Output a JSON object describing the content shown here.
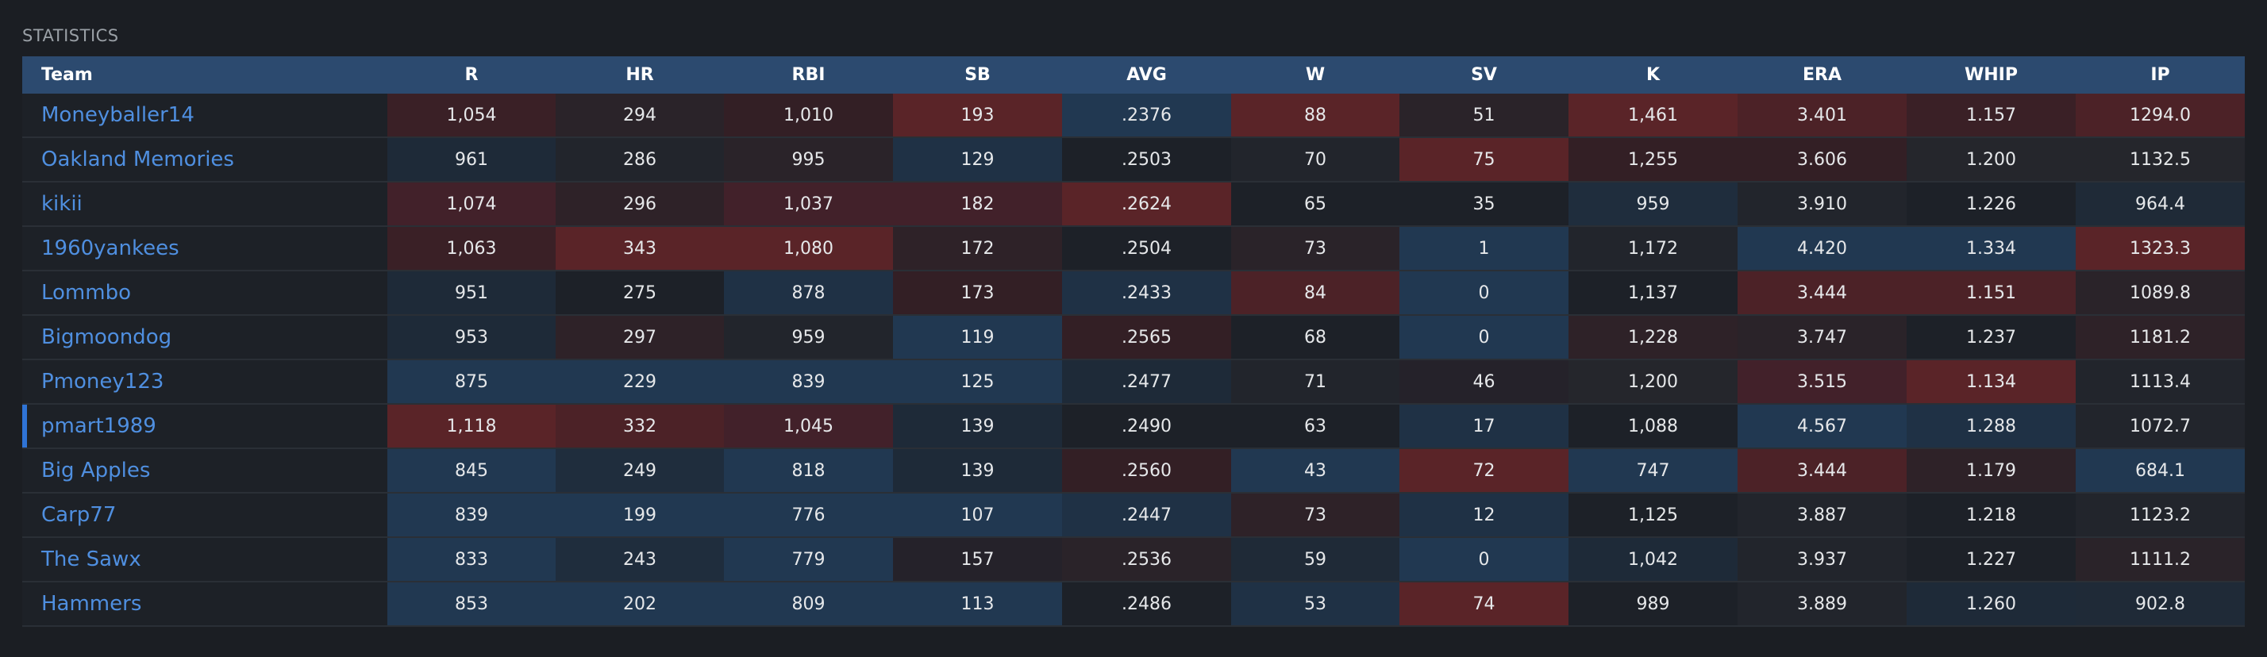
{
  "section_title": "STATISTICS",
  "columns": [
    "Team",
    "R",
    "HR",
    "RBI",
    "SB",
    "AVG",
    "W",
    "SV",
    "K",
    "ERA",
    "WHIP",
    "IP"
  ],
  "selected_team": "pmart1989",
  "rows": [
    {
      "team": "Moneyballer14",
      "cells": [
        {
          "v": "1,054",
          "c": "#3a2026"
        },
        {
          "v": "294",
          "c": "#2a2329"
        },
        {
          "v": "1,010",
          "c": "#331f25"
        },
        {
          "v": "193",
          "c": "#5a2428"
        },
        {
          "v": ".2376",
          "c": "#213851"
        },
        {
          "v": "88",
          "c": "#5a2428"
        },
        {
          "v": "51",
          "c": "#2a2329"
        },
        {
          "v": "1,461",
          "c": "#5a2428"
        },
        {
          "v": "3.401",
          "c": "#4c2227"
        },
        {
          "v": "1.157",
          "c": "#3a2026"
        },
        {
          "v": "1294.0",
          "c": "#4c2227"
        }
      ]
    },
    {
      "team": "Oakland Memories",
      "cells": [
        {
          "v": "961",
          "c": "#1e2a38"
        },
        {
          "v": "286",
          "c": "#22252c"
        },
        {
          "v": "995",
          "c": "#2a2329"
        },
        {
          "v": "129",
          "c": "#1f3145"
        },
        {
          "v": ".2503",
          "c": "#1d2128"
        },
        {
          "v": "70",
          "c": "#22252c"
        },
        {
          "v": "75",
          "c": "#5a2428"
        },
        {
          "v": "1,255",
          "c": "#331f25"
        },
        {
          "v": "3.606",
          "c": "#331f25"
        },
        {
          "v": "1.200",
          "c": "#25262c"
        },
        {
          "v": "1132.5",
          "c": "#25262c"
        }
      ]
    },
    {
      "team": "kikii",
      "cells": [
        {
          "v": "1,074",
          "c": "#42212a"
        },
        {
          "v": "296",
          "c": "#2e2228"
        },
        {
          "v": "1,037",
          "c": "#42212a"
        },
        {
          "v": "182",
          "c": "#42212a"
        },
        {
          "v": ".2624",
          "c": "#5a2428"
        },
        {
          "v": "65",
          "c": "#1d2128"
        },
        {
          "v": "35",
          "c": "#1d2128"
        },
        {
          "v": "959",
          "c": "#1f2d3d"
        },
        {
          "v": "3.910",
          "c": "#22252c"
        },
        {
          "v": "1.226",
          "c": "#1d2128"
        },
        {
          "v": "964.4",
          "c": "#1f2a37"
        }
      ]
    },
    {
      "team": "1960yankees",
      "cells": [
        {
          "v": "1,063",
          "c": "#3a2026"
        },
        {
          "v": "343",
          "c": "#5a2428"
        },
        {
          "v": "1,080",
          "c": "#5a2428"
        },
        {
          "v": "172",
          "c": "#2e2228"
        },
        {
          "v": ".2504",
          "c": "#1d2128"
        },
        {
          "v": "73",
          "c": "#2a2329"
        },
        {
          "v": "1",
          "c": "#213851"
        },
        {
          "v": "1,172",
          "c": "#22252c"
        },
        {
          "v": "4.420",
          "c": "#213851"
        },
        {
          "v": "1.334",
          "c": "#213851"
        },
        {
          "v": "1323.3",
          "c": "#5a2428"
        }
      ]
    },
    {
      "team": "Lommbo",
      "cells": [
        {
          "v": "951",
          "c": "#1e2a38"
        },
        {
          "v": "275",
          "c": "#1d2128"
        },
        {
          "v": "878",
          "c": "#1f3145"
        },
        {
          "v": "173",
          "c": "#331f25"
        },
        {
          "v": ".2433",
          "c": "#1f3145"
        },
        {
          "v": "84",
          "c": "#4c2227"
        },
        {
          "v": "0",
          "c": "#213851"
        },
        {
          "v": "1,137",
          "c": "#1d2128"
        },
        {
          "v": "3.444",
          "c": "#4c2227"
        },
        {
          "v": "1.151",
          "c": "#4c2227"
        },
        {
          "v": "1089.8",
          "c": "#2a2329"
        }
      ]
    },
    {
      "team": "Bigmoondog",
      "cells": [
        {
          "v": "953",
          "c": "#1e2a38"
        },
        {
          "v": "297",
          "c": "#2e2228"
        },
        {
          "v": "959",
          "c": "#22252c"
        },
        {
          "v": "119",
          "c": "#213851"
        },
        {
          "v": ".2565",
          "c": "#331f25"
        },
        {
          "v": "68",
          "c": "#1d2128"
        },
        {
          "v": "0",
          "c": "#213851"
        },
        {
          "v": "1,228",
          "c": "#2e2228"
        },
        {
          "v": "3.747",
          "c": "#2a2329"
        },
        {
          "v": "1.237",
          "c": "#1d2128"
        },
        {
          "v": "1181.2",
          "c": "#2e2228"
        }
      ]
    },
    {
      "team": "Pmoney123",
      "cells": [
        {
          "v": "875",
          "c": "#213851"
        },
        {
          "v": "229",
          "c": "#213851"
        },
        {
          "v": "839",
          "c": "#213851"
        },
        {
          "v": "125",
          "c": "#213851"
        },
        {
          "v": ".2477",
          "c": "#1e2a38"
        },
        {
          "v": "71",
          "c": "#22252c"
        },
        {
          "v": "46",
          "c": "#25222a"
        },
        {
          "v": "1,200",
          "c": "#25262c"
        },
        {
          "v": "3.515",
          "c": "#42212a"
        },
        {
          "v": "1.134",
          "c": "#5a2428"
        },
        {
          "v": "1113.4",
          "c": "#22252c"
        }
      ]
    },
    {
      "team": "pmart1989",
      "cells": [
        {
          "v": "1,118",
          "c": "#5a2428"
        },
        {
          "v": "332",
          "c": "#4c2227"
        },
        {
          "v": "1,045",
          "c": "#42212a"
        },
        {
          "v": "139",
          "c": "#1e2a38"
        },
        {
          "v": ".2490",
          "c": "#1d2128"
        },
        {
          "v": "63",
          "c": "#1d2128"
        },
        {
          "v": "17",
          "c": "#1f3145"
        },
        {
          "v": "1,088",
          "c": "#1d2128"
        },
        {
          "v": "4.567",
          "c": "#213851"
        },
        {
          "v": "1.288",
          "c": "#1f3145"
        },
        {
          "v": "1072.7",
          "c": "#22252c"
        }
      ]
    },
    {
      "team": "Big Apples",
      "cells": [
        {
          "v": "845",
          "c": "#213851"
        },
        {
          "v": "249",
          "c": "#1f2d3d"
        },
        {
          "v": "818",
          "c": "#213851"
        },
        {
          "v": "139",
          "c": "#1e2a38"
        },
        {
          "v": ".2560",
          "c": "#331f25"
        },
        {
          "v": "43",
          "c": "#213851"
        },
        {
          "v": "72",
          "c": "#5a2428"
        },
        {
          "v": "747",
          "c": "#213851"
        },
        {
          "v": "3.444",
          "c": "#4c2227"
        },
        {
          "v": "1.179",
          "c": "#2e2228"
        },
        {
          "v": "684.1",
          "c": "#213851"
        }
      ]
    },
    {
      "team": "Carp77",
      "cells": [
        {
          "v": "839",
          "c": "#213851"
        },
        {
          "v": "199",
          "c": "#213851"
        },
        {
          "v": "776",
          "c": "#213851"
        },
        {
          "v": "107",
          "c": "#213851"
        },
        {
          "v": ".2447",
          "c": "#1f3145"
        },
        {
          "v": "73",
          "c": "#2e2228"
        },
        {
          "v": "12",
          "c": "#1f3145"
        },
        {
          "v": "1,125",
          "c": "#1d2128"
        },
        {
          "v": "3.887",
          "c": "#22252c"
        },
        {
          "v": "1.218",
          "c": "#1d2128"
        },
        {
          "v": "1123.2",
          "c": "#22252c"
        }
      ]
    },
    {
      "team": "The Sawx",
      "cells": [
        {
          "v": "833",
          "c": "#213851"
        },
        {
          "v": "243",
          "c": "#1f2d3d"
        },
        {
          "v": "779",
          "c": "#213851"
        },
        {
          "v": "157",
          "c": "#25222a"
        },
        {
          "v": ".2536",
          "c": "#2a2329"
        },
        {
          "v": "59",
          "c": "#1f2a37"
        },
        {
          "v": "0",
          "c": "#213851"
        },
        {
          "v": "1,042",
          "c": "#1e2a38"
        },
        {
          "v": "3.937",
          "c": "#22252c"
        },
        {
          "v": "1.227",
          "c": "#1d2128"
        },
        {
          "v": "1111.2",
          "c": "#2a2329"
        }
      ]
    },
    {
      "team": "Hammers",
      "cells": [
        {
          "v": "853",
          "c": "#213851"
        },
        {
          "v": "202",
          "c": "#213851"
        },
        {
          "v": "809",
          "c": "#213851"
        },
        {
          "v": "113",
          "c": "#213851"
        },
        {
          "v": ".2486",
          "c": "#1d2128"
        },
        {
          "v": "53",
          "c": "#1f3145"
        },
        {
          "v": "74",
          "c": "#5a2428"
        },
        {
          "v": "989",
          "c": "#1d2128"
        },
        {
          "v": "3.889",
          "c": "#22252c"
        },
        {
          "v": "1.260",
          "c": "#1e2a38"
        },
        {
          "v": "902.8",
          "c": "#1f2a37"
        }
      ]
    }
  ]
}
